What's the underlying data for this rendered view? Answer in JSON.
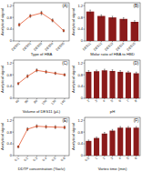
{
  "chart_data": [
    {
      "type": "line",
      "title": "(A)",
      "x_label": "Type of HBA",
      "y_label": "Analytical signal",
      "categories": [
        "DES01",
        "DES02",
        "DES03",
        "DES04",
        "DES05"
      ],
      "values": [
        0.55,
        0.85,
        0.95,
        0.7,
        0.35
      ],
      "errors": [
        0.05,
        0.05,
        0.06,
        0.05,
        0.04
      ],
      "color": "#e4572e",
      "marker": "circle",
      "ylim": [
        0,
        1.3
      ],
      "yticks": [
        0,
        0.4,
        0.8,
        1.2
      ]
    },
    {
      "type": "bar",
      "title": "(B)",
      "x_label": "Molar ratio of HBA to HBD",
      "y_label": "Analytical signal",
      "categories": [
        "DES11",
        "DES12",
        "DES13",
        "DES14",
        "DES15"
      ],
      "values": [
        1.0,
        0.85,
        0.8,
        0.75,
        0.65
      ],
      "errors": [
        0.05,
        0.04,
        0.04,
        0.04,
        0.04
      ],
      "color": "#8b1a1a",
      "ylim": [
        0,
        1.3
      ],
      "yticks": [
        0,
        0.4,
        0.8,
        1.2
      ]
    },
    {
      "type": "line",
      "title": "(C)",
      "x_label": "Volume of DES11 (µL)",
      "y_label": "Analytical signal",
      "categories": [
        "40",
        "60",
        "80",
        "100",
        "120",
        "140"
      ],
      "values": [
        0.5,
        0.75,
        0.95,
        0.9,
        0.85,
        0.8
      ],
      "errors": [
        0.04,
        0.05,
        0.05,
        0.05,
        0.04,
        0.04
      ],
      "color": "#e4572e",
      "marker": "circle",
      "ylim": [
        0,
        1.3
      ],
      "yticks": [
        0,
        0.4,
        0.8,
        1.2
      ]
    },
    {
      "type": "bar",
      "title": "(D)",
      "x_label": "pH",
      "y_label": "Analytical signal",
      "categories": [
        "2",
        "3",
        "4",
        "5",
        "6",
        "7",
        "8"
      ],
      "values": [
        0.9,
        0.92,
        0.95,
        0.93,
        0.9,
        0.88,
        0.85
      ],
      "errors": [
        0.04,
        0.04,
        0.04,
        0.04,
        0.04,
        0.04,
        0.04
      ],
      "color": "#8b1a1a",
      "ylim": [
        0,
        1.3
      ],
      "yticks": [
        0,
        0.4,
        0.8,
        1.2
      ]
    },
    {
      "type": "line",
      "title": "(E)",
      "x_label": "DDTP concentration (%w/v)",
      "y_label": "Analytical signal",
      "categories": [
        "0.1",
        "0.2",
        "0.3",
        "0.4",
        "0.5",
        "0.6"
      ],
      "values": [
        0.3,
        0.9,
        1.0,
        0.98,
        0.97,
        0.96
      ],
      "errors": [
        0.03,
        0.05,
        0.05,
        0.05,
        0.05,
        0.05
      ],
      "color": "#e4572e",
      "marker": "circle",
      "ylim": [
        0,
        1.3
      ],
      "yticks": [
        0,
        0.4,
        0.8,
        1.2
      ]
    },
    {
      "type": "bar",
      "title": "(F)",
      "x_label": "Vortex time (min)",
      "y_label": "Analytical signal",
      "categories": [
        "0.5",
        "1",
        "2",
        "3",
        "4",
        "5",
        "6"
      ],
      "values": [
        0.5,
        0.6,
        0.75,
        0.85,
        0.95,
        0.95,
        0.95
      ],
      "errors": [
        0.03,
        0.03,
        0.04,
        0.04,
        0.04,
        0.04,
        0.04
      ],
      "color": "#8b1a1a",
      "ylim": [
        0,
        1.3
      ],
      "yticks": [
        0,
        0.4,
        0.8,
        1.2
      ]
    }
  ]
}
